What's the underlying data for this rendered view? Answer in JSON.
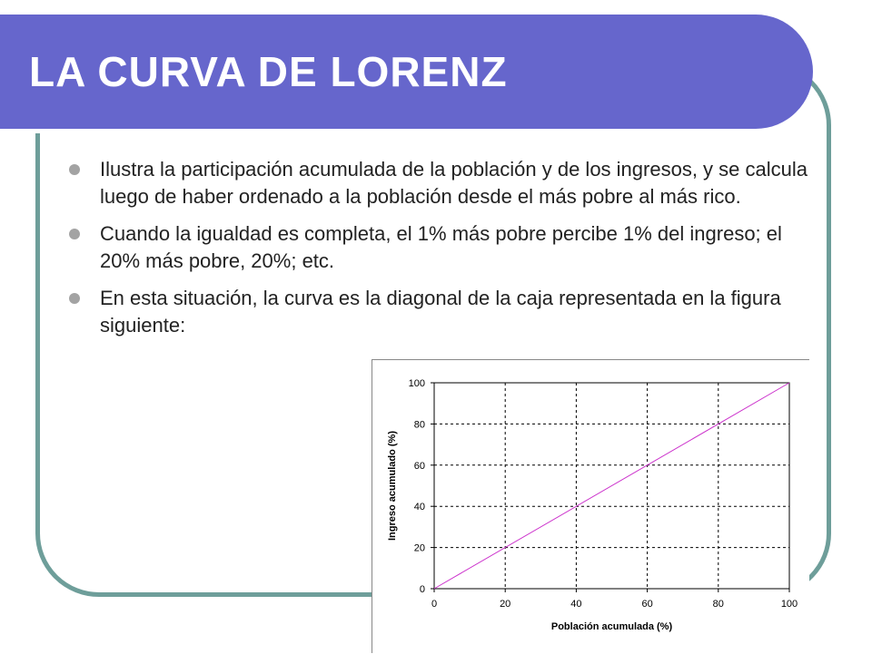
{
  "slide": {
    "title": "LA CURVA DE LORENZ",
    "bullets": [
      "Ilustra la participación acumulada de la población y de los ingresos, y se calcula luego de haber ordenado a la población desde el más pobre al más rico.",
      "Cuando la igualdad es completa, el 1% más pobre percibe 1% del ingreso; el 20% más pobre, 20%; etc.",
      "En esta situación, la curva es la diagonal de la caja representada en la figura siguiente:"
    ]
  },
  "colors": {
    "title_bar": "#6666cc",
    "frame": "#6e9e9a",
    "line": "#cc33cc",
    "bullet": "#a3a3a3"
  },
  "chart_data": {
    "type": "line",
    "xlabel": "Población acumulada (%)",
    "ylabel": "Ingreso acumulado (%)",
    "xlim": [
      0,
      100
    ],
    "ylim": [
      0,
      100
    ],
    "xticks": [
      0,
      20,
      40,
      60,
      80,
      100
    ],
    "yticks": [
      0,
      20,
      40,
      60,
      80,
      100
    ],
    "grid": true,
    "series": [
      {
        "x": [
          0,
          100
        ],
        "y": [
          0,
          100
        ]
      }
    ]
  }
}
